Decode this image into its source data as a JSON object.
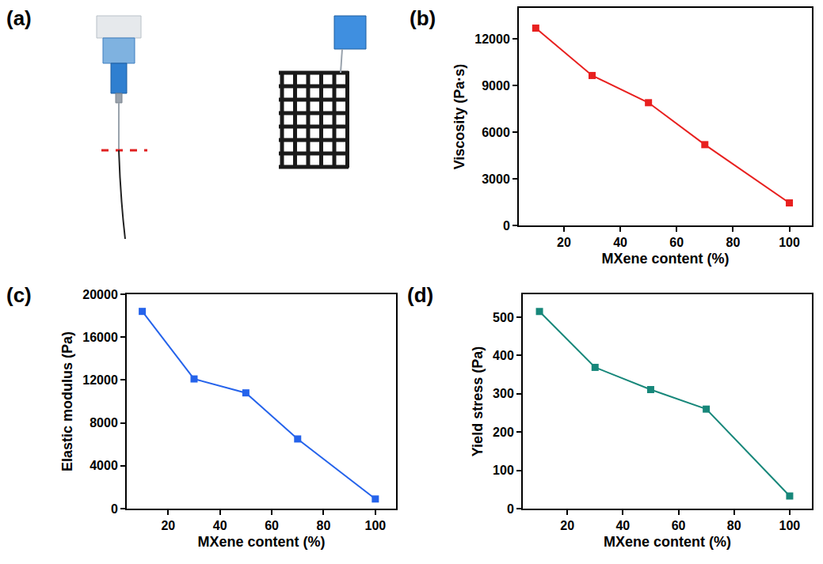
{
  "image_panel": {
    "panel_label": "(a)"
  },
  "chart_data": [
    {
      "panel_label": "(b)",
      "type": "line",
      "marker": "square",
      "color": "#e8201f",
      "x": [
        10,
        30,
        50,
        70,
        100
      ],
      "values": [
        12700,
        9650,
        7900,
        5200,
        1450
      ],
      "x_label": "MXene content (%)",
      "y_label": "Viscosity (Pa·s)",
      "xlim": [
        4,
        108
      ],
      "xticks": [
        20,
        40,
        60,
        80,
        100
      ],
      "ylim": [
        0,
        14000
      ],
      "yticks": [
        0,
        3000,
        6000,
        9000,
        12000
      ],
      "grid": false
    },
    {
      "panel_label": "(c)",
      "type": "line",
      "marker": "square",
      "color": "#2563eb",
      "x": [
        10,
        30,
        50,
        70,
        100
      ],
      "values": [
        18400,
        12100,
        10800,
        6500,
        900
      ],
      "x_label": "MXene content (%)",
      "y_label": "Elastic modulus (Pa)",
      "xlim": [
        4,
        108
      ],
      "xticks": [
        20,
        40,
        60,
        80,
        100
      ],
      "ylim": [
        0,
        20000
      ],
      "yticks": [
        0,
        4000,
        8000,
        12000,
        16000,
        20000
      ],
      "grid": false
    },
    {
      "panel_label": "(d)",
      "type": "line",
      "marker": "square",
      "color": "#17877a",
      "x": [
        10,
        30,
        50,
        70,
        100
      ],
      "values": [
        515,
        369,
        311,
        260,
        33
      ],
      "x_label": "MXene content (%)",
      "y_label": "Yield stress (Pa)",
      "xlim": [
        4,
        108
      ],
      "xticks": [
        20,
        40,
        60,
        80,
        100
      ],
      "ylim": [
        0,
        560
      ],
      "yticks": [
        0,
        100,
        200,
        300,
        400,
        500
      ],
      "grid": false
    }
  ]
}
